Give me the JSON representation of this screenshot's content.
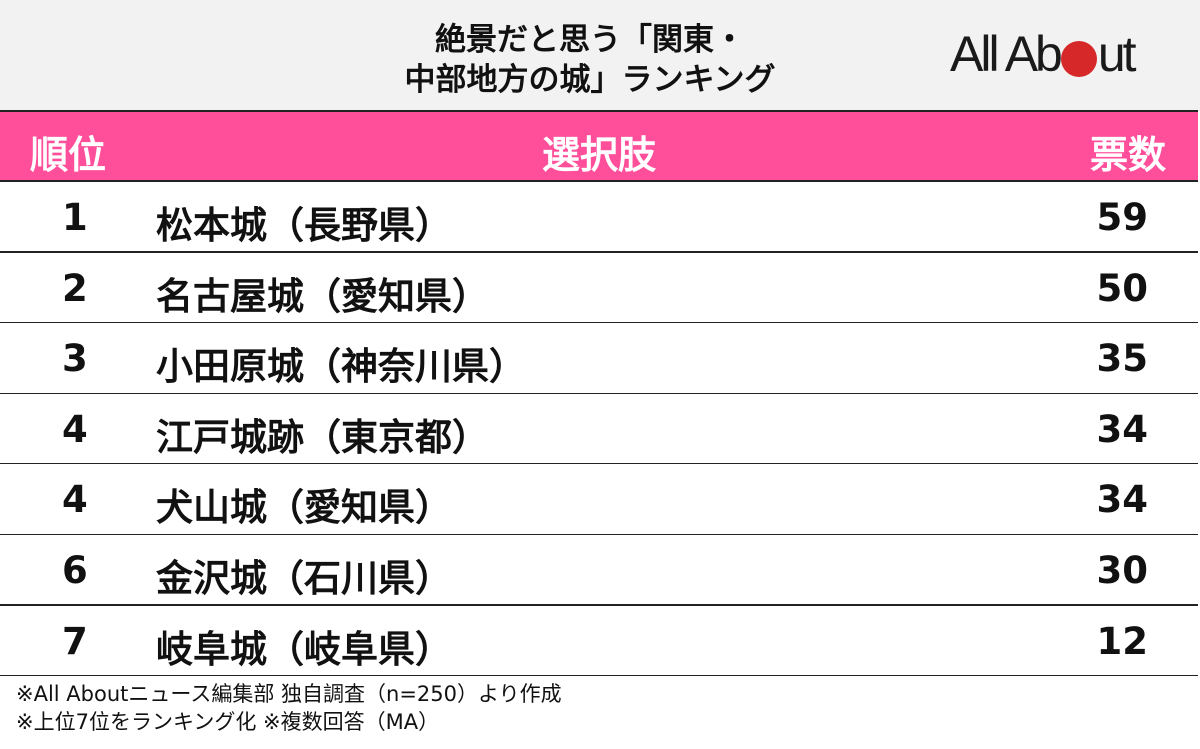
{
  "title": {
    "line1": "絶景だと思う「関東・",
    "line2": "中部地方の城」ランキング"
  },
  "logo": {
    "text_before": "All Ab",
    "text_after": "ut",
    "dot_color": "#d62828"
  },
  "colors": {
    "header_bg": "#ff4f9b",
    "title_bg": "#f2f2f2"
  },
  "table": {
    "headers": {
      "rank": "順位",
      "choice": "選択肢",
      "votes": "票数"
    },
    "rows": [
      {
        "rank": "1",
        "name": "松本城（長野県）",
        "votes": "59"
      },
      {
        "rank": "2",
        "name": "名古屋城（愛知県）",
        "votes": "50"
      },
      {
        "rank": "3",
        "name": "小田原城（神奈川県）",
        "votes": "35"
      },
      {
        "rank": "4",
        "name": "江戸城跡（東京都）",
        "votes": "34"
      },
      {
        "rank": "4",
        "name": "犬山城（愛知県）",
        "votes": "34"
      },
      {
        "rank": "6",
        "name": "金沢城（石川県）",
        "votes": "30"
      },
      {
        "rank": "7",
        "name": "岐阜城（岐阜県）",
        "votes": "12"
      }
    ]
  },
  "footer": {
    "line1": "※All Aboutニュース編集部 独自調査（n=250）より作成",
    "line2": "※上位7位をランキング化 ※複数回答（MA）"
  },
  "chart_data": {
    "type": "table",
    "title": "絶景だと思う「関東・中部地方の城」ランキング",
    "columns": [
      "順位",
      "選択肢",
      "票数"
    ],
    "categories": [
      "松本城（長野県）",
      "名古屋城（愛知県）",
      "小田原城（神奈川県）",
      "江戸城跡（東京都）",
      "犬山城（愛知県）",
      "金沢城（石川県）",
      "岐阜城（岐阜県）"
    ],
    "ranks": [
      1,
      2,
      3,
      4,
      4,
      6,
      7
    ],
    "values": [
      59,
      50,
      35,
      34,
      34,
      30,
      12
    ],
    "notes": [
      "※All Aboutニュース編集部 独自調査（n=250）より作成",
      "※上位7位をランキング化 ※複数回答（MA）"
    ]
  }
}
